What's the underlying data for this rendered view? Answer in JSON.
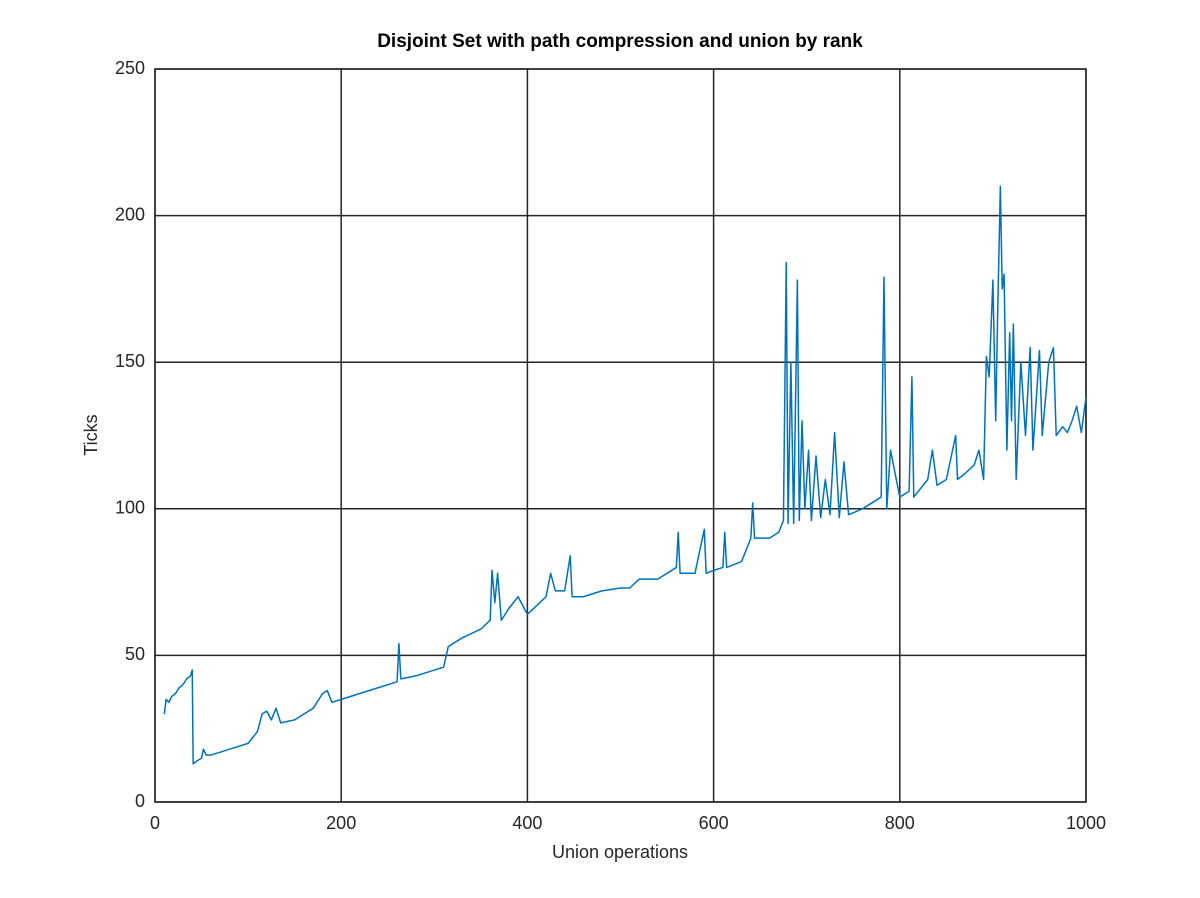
{
  "chart_data": {
    "type": "line",
    "title": "Disjoint Set with path compression and union by rank",
    "x_label": "Union operations",
    "y_label": "Ticks",
    "x": [
      10,
      12,
      15,
      18,
      22,
      26,
      30,
      34,
      38,
      40,
      41,
      45,
      50,
      52,
      55,
      60,
      70,
      80,
      90,
      100,
      105,
      110,
      115,
      120,
      125,
      130,
      135,
      150,
      160,
      170,
      180,
      185,
      190,
      200,
      220,
      240,
      260,
      262,
      264,
      280,
      300,
      310,
      315,
      330,
      350,
      360,
      362,
      365,
      368,
      372,
      380,
      390,
      400,
      410,
      420,
      425,
      430,
      440,
      446,
      448,
      460,
      480,
      500,
      510,
      520,
      540,
      560,
      562,
      564,
      580,
      590,
      592,
      600,
      610,
      612,
      614,
      630,
      640,
      642,
      644,
      660,
      670,
      675,
      678,
      680,
      683,
      686,
      690,
      692,
      695,
      698,
      702,
      705,
      710,
      715,
      720,
      725,
      730,
      735,
      740,
      745,
      760,
      770,
      780,
      783,
      786,
      790,
      800,
      810,
      813,
      815,
      830,
      835,
      840,
      850,
      860,
      862,
      870,
      880,
      885,
      890,
      893,
      896,
      900,
      903,
      905,
      908,
      910,
      912,
      915,
      918,
      920,
      922,
      925,
      930,
      935,
      940,
      943,
      950,
      953,
      960,
      965,
      968,
      975,
      980,
      985,
      990,
      995,
      1000
    ],
    "values": [
      30,
      35,
      34,
      36,
      37,
      39,
      40,
      42,
      43,
      45,
      13,
      14,
      15,
      18,
      16,
      16,
      17,
      18,
      19,
      20,
      22,
      24,
      30,
      31,
      28,
      32,
      27,
      28,
      30,
      32,
      37,
      38,
      34,
      35,
      37,
      39,
      41,
      54,
      42,
      43,
      45,
      46,
      53,
      56,
      59,
      62,
      79,
      68,
      78,
      62,
      66,
      70,
      64,
      67,
      70,
      78,
      72,
      72,
      84,
      70,
      70,
      72,
      73,
      73,
      76,
      76,
      80,
      92,
      78,
      78,
      93,
      78,
      79,
      80,
      92,
      80,
      82,
      90,
      102,
      90,
      90,
      92,
      96,
      184,
      95,
      150,
      95,
      178,
      96,
      130,
      100,
      120,
      96,
      118,
      97,
      110,
      98,
      126,
      97,
      116,
      98,
      100,
      102,
      104,
      179,
      100,
      120,
      104,
      106,
      145,
      104,
      110,
      120,
      108,
      110,
      125,
      110,
      112,
      115,
      120,
      110,
      152,
      145,
      178,
      130,
      165,
      210,
      175,
      180,
      120,
      160,
      130,
      163,
      110,
      150,
      125,
      155,
      120,
      154,
      125,
      150,
      155,
      125,
      128,
      126,
      130,
      135,
      126,
      138
    ],
    "color": "#0072bd",
    "xlim": [
      0,
      1000
    ],
    "xticks": [
      0,
      200,
      400,
      600,
      800,
      1000
    ],
    "ylim": [
      0,
      250
    ],
    "yticks": [
      0,
      50,
      100,
      150,
      200,
      250
    ],
    "grid": true
  }
}
